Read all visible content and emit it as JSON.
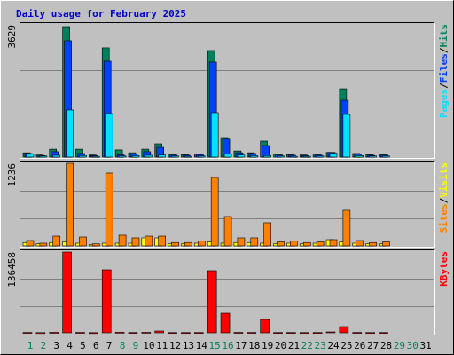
{
  "chart_data": [
    {
      "type": "bar",
      "title": "Daily usage for February 2025",
      "ylim": [
        0,
        3629
      ],
      "yticks": [
        3629
      ],
      "legend_separator": "/",
      "series": [
        {
          "name": "Hits",
          "color": "#00805c",
          "values": [
            120,
            60,
            220,
            3629,
            220,
            60,
            3038,
            200,
            120,
            220,
            370,
            80,
            70,
            90,
            2963,
            543,
            170,
            120,
            445,
            80,
            70,
            60,
            80,
            130,
            1900,
            100,
            70,
            80,
            null,
            null,
            null
          ]
        },
        {
          "name": "Files",
          "color": "#0040ff",
          "values": [
            100,
            40,
            150,
            3235,
            100,
            40,
            2667,
            60,
            90,
            150,
            270,
            60,
            50,
            70,
            2643,
            500,
            120,
            100,
            321,
            60,
            50,
            40,
            60,
            130,
            1580,
            80,
            50,
            60,
            null,
            null,
            null
          ]
        },
        {
          "name": "Pages",
          "color": "#00e0ff",
          "values": [
            80,
            30,
            50,
            1309,
            40,
            20,
            1210,
            30,
            40,
            50,
            60,
            30,
            20,
            30,
            1235,
            80,
            60,
            40,
            40,
            30,
            20,
            20,
            30,
            110,
            1186,
            40,
            30,
            30,
            null,
            null,
            null
          ]
        }
      ]
    },
    {
      "type": "bar",
      "ylim": [
        0,
        1236
      ],
      "yticks": [
        1236
      ],
      "legend_separator": "/",
      "series": [
        {
          "name": "Visits",
          "color": "#ffff00",
          "values": [
            50,
            30,
            50,
            60,
            40,
            20,
            40,
            40,
            40,
            120,
            120,
            30,
            30,
            40,
            60,
            40,
            50,
            50,
            40,
            30,
            40,
            30,
            40,
            93,
            60,
            40,
            30,
            30,
            null,
            null,
            null
          ]
        },
        {
          "name": "Sites",
          "color": "#ff8000",
          "values": [
            80,
            40,
            146,
            1236,
            133,
            30,
            1090,
            160,
            120,
            146,
            146,
            50,
            50,
            70,
            1024,
            439,
            120,
            120,
            346,
            60,
            70,
            50,
            60,
            93,
            532,
            80,
            50,
            60,
            null,
            null,
            null
          ]
        }
      ]
    },
    {
      "type": "bar",
      "ylim": [
        0,
        136458
      ],
      "yticks": [
        136458
      ],
      "categories": [
        "1",
        "2",
        "3",
        "4",
        "5",
        "6",
        "7",
        "8",
        "9",
        "10",
        "11",
        "12",
        "13",
        "14",
        "15",
        "16",
        "17",
        "18",
        "19",
        "20",
        "21",
        "22",
        "23",
        "24",
        "25",
        "26",
        "27",
        "28",
        "29",
        "30",
        "31"
      ],
      "weekend_color": "#00805c",
      "weekend_indices": [
        0,
        1,
        7,
        8,
        14,
        15,
        21,
        22,
        28,
        29
      ],
      "series": [
        {
          "name": "KBytes",
          "color": "#ff0000",
          "values": [
            600,
            300,
            800,
            136458,
            700,
            300,
            106500,
            900,
            500,
            800,
            3000,
            400,
            400,
            500,
            105000,
            33000,
            700,
            600,
            22500,
            500,
            500,
            400,
            500,
            1500,
            10500,
            600,
            400,
            500,
            null,
            null,
            null
          ]
        }
      ]
    }
  ]
}
